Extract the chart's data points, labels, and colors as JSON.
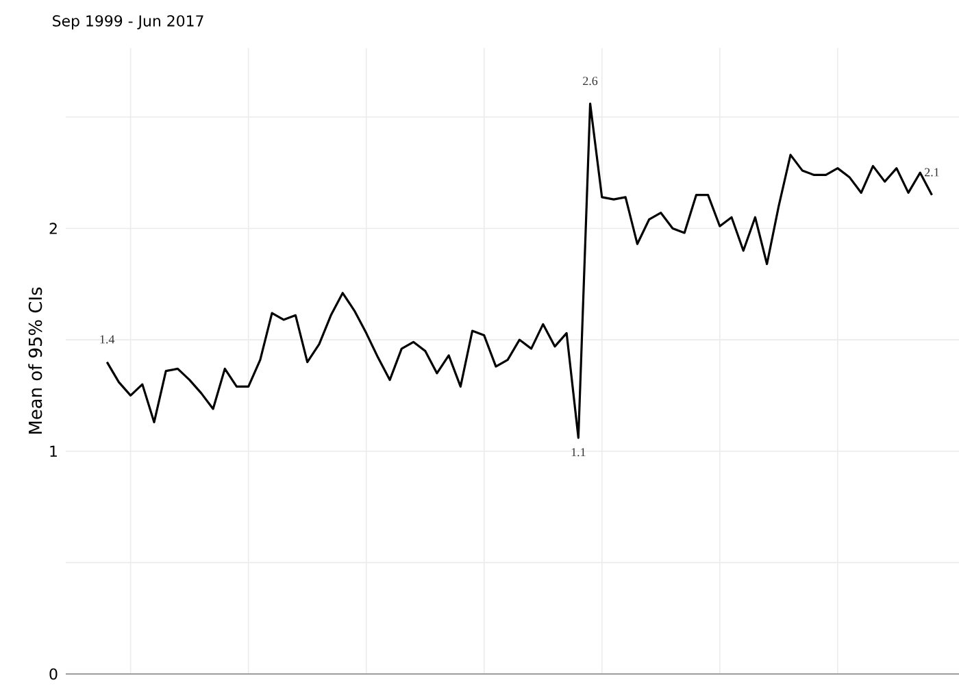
{
  "chart_data": {
    "type": "line",
    "title": "Sep 1999 - Jun 2017",
    "ylabel": "Mean of 95% CIs",
    "categories": [
      null,
      null,
      null,
      null,
      null,
      null,
      null,
      null,
      null,
      null,
      null,
      null,
      null,
      null,
      null,
      null,
      null,
      null,
      null,
      null,
      null,
      null,
      null,
      null,
      null,
      null,
      null,
      null,
      null,
      null,
      null,
      null,
      null,
      null,
      null,
      null,
      null,
      null,
      null,
      null,
      null,
      null,
      null,
      null,
      null,
      null,
      null,
      null,
      null,
      null,
      null,
      null,
      null,
      null,
      null,
      null,
      null,
      null,
      null,
      null,
      null,
      null,
      null,
      null,
      null,
      null,
      null,
      null,
      null,
      null,
      null
    ],
    "series": [
      {
        "color": "#000000",
        "values": [
          1.4,
          1.31,
          1.25,
          1.3,
          1.13,
          1.36,
          1.37,
          1.32,
          1.26,
          1.19,
          1.37,
          1.29,
          1.29,
          1.41,
          1.62,
          1.59,
          1.61,
          1.4,
          1.48,
          1.61,
          1.71,
          1.63,
          1.53,
          1.42,
          1.32,
          1.46,
          1.49,
          1.45,
          1.35,
          1.43,
          1.29,
          1.54,
          1.52,
          1.38,
          1.41,
          1.5,
          1.46,
          1.57,
          1.47,
          1.53,
          1.06,
          2.56,
          2.14,
          2.13,
          2.14,
          1.93,
          2.04,
          2.07,
          2.0,
          1.98,
          2.15,
          2.15,
          2.01,
          2.05,
          1.9,
          2.05,
          1.84,
          2.1,
          2.33,
          2.26,
          2.24,
          2.24,
          2.27,
          2.23,
          2.16,
          2.28,
          2.21,
          2.27,
          2.16,
          2.25,
          2.15
        ],
        "value_labels": [
          "1.4",
          null,
          null,
          null,
          null,
          null,
          null,
          null,
          null,
          null,
          null,
          null,
          null,
          null,
          null,
          null,
          null,
          null,
          null,
          null,
          null,
          null,
          null,
          null,
          null,
          null,
          null,
          null,
          null,
          null,
          null,
          null,
          null,
          null,
          null,
          null,
          null,
          null,
          null,
          null,
          "1.1",
          "2.6",
          null,
          null,
          null,
          null,
          null,
          null,
          null,
          null,
          null,
          null,
          null,
          null,
          null,
          null,
          null,
          null,
          null,
          null,
          null,
          null,
          null,
          null,
          null,
          null,
          null,
          null,
          null,
          null,
          "2.1"
        ]
      }
    ],
    "ylim": [
      0,
      2.81
    ],
    "yticks": [
      0,
      {
        "value": 0.5,
        "label": null
      },
      1,
      {
        "value": 1.5,
        "label": null
      },
      2,
      {
        "value": 2.5,
        "label": null
      }
    ],
    "grid": true,
    "tick_labels": "y"
  }
}
